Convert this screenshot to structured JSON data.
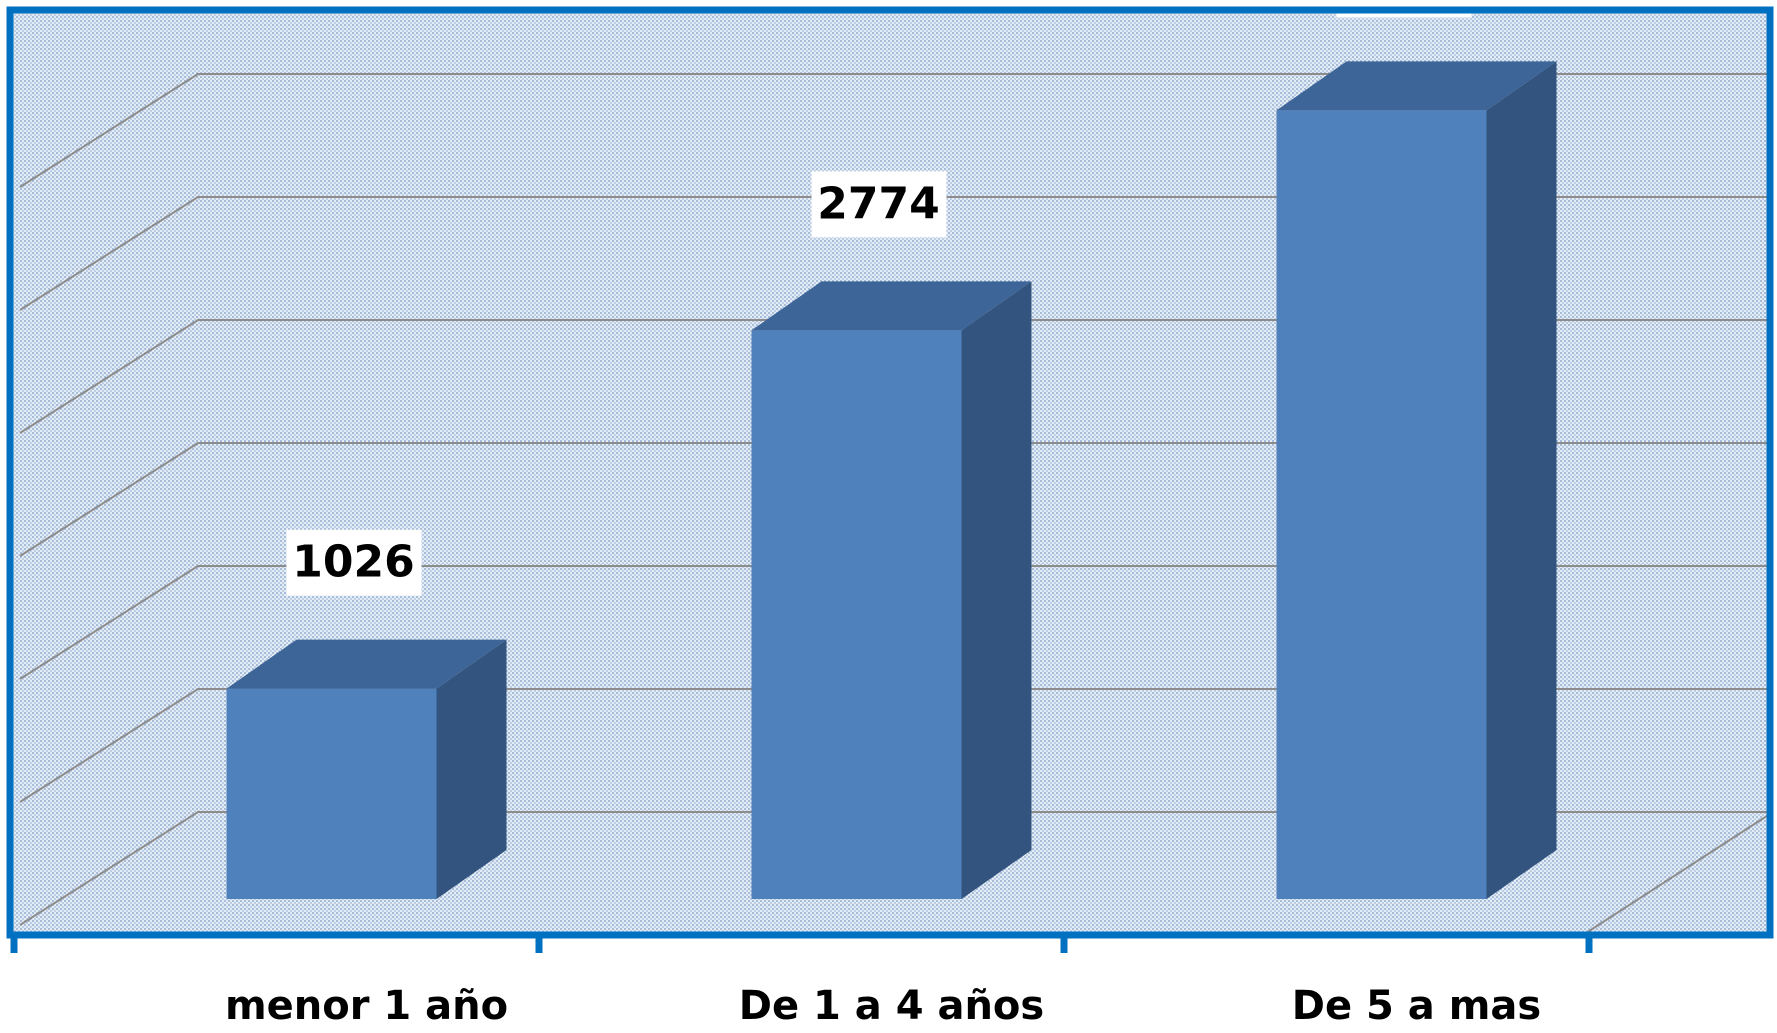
{
  "chart_data": {
    "type": "bar3d",
    "categories": [
      "menor 1 año",
      "De 1 a 4 años",
      "De 5 a mas"
    ],
    "values": [
      1026,
      2774,
      3847
    ],
    "color": "#4f81bd",
    "ylim": [
      0,
      4000
    ],
    "yticks": [
      0,
      600,
      1200,
      1800,
      2400,
      3000,
      3600
    ],
    "grid": true
  }
}
